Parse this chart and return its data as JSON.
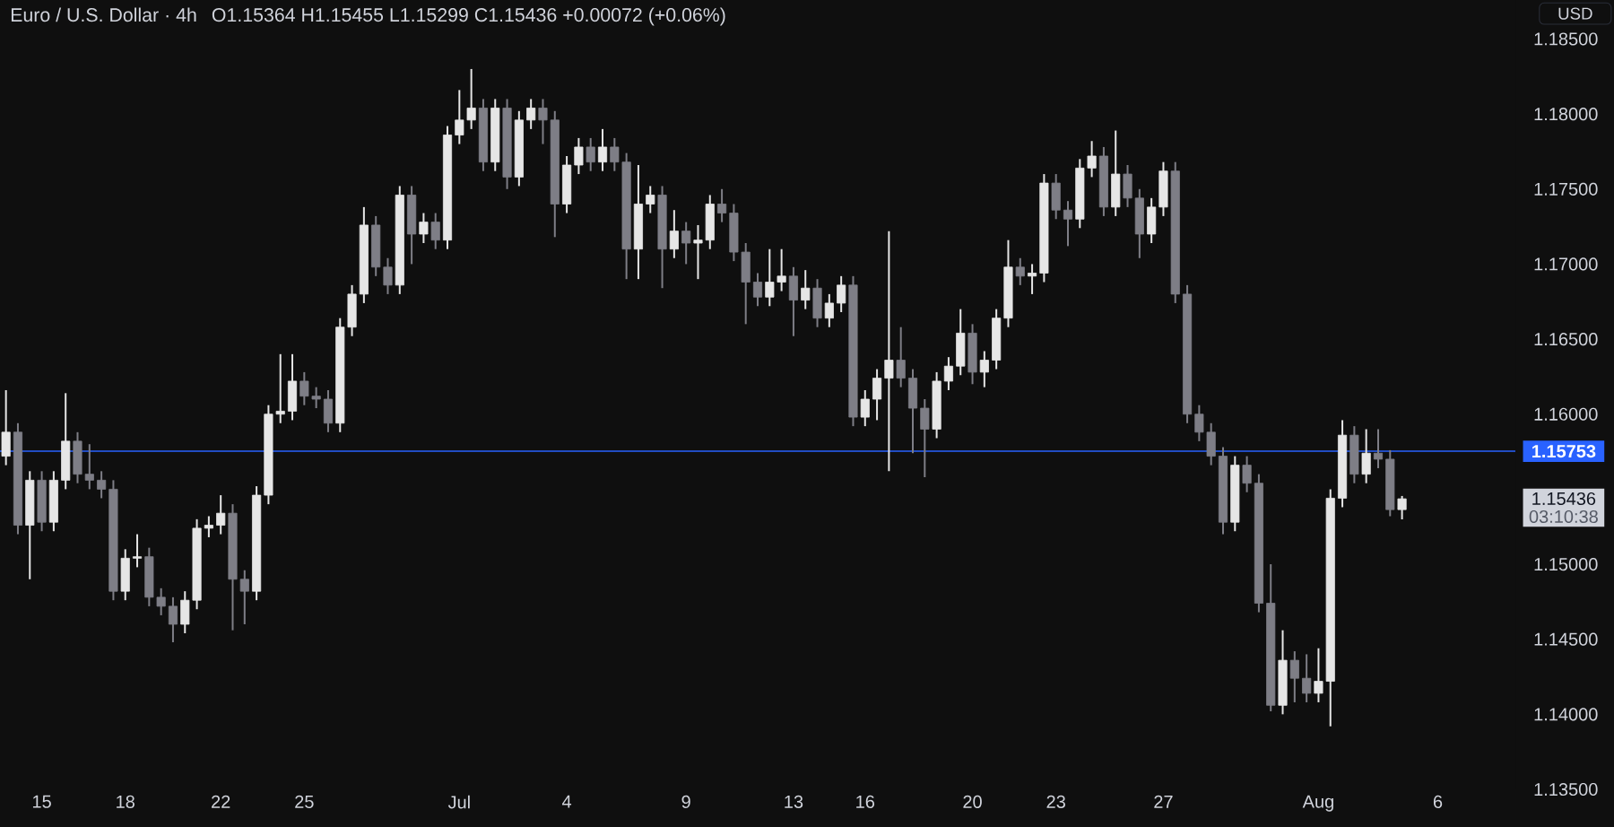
{
  "chart_data": {
    "type": "candlestick",
    "title": "Euro / U.S. Dollar · 4h",
    "subtitle": "O1.15364  H1.15455  L1.15299  C1.15436  +0.00072 (+0.06%)",
    "categories": [
      null,
      null,
      null,
      "15",
      null,
      null,
      null,
      null,
      null,
      null,
      "18",
      null,
      null,
      null,
      null,
      null,
      null,
      null,
      "22",
      null,
      null,
      null,
      null,
      null,
      null,
      "25",
      null,
      null,
      null,
      null,
      null,
      null,
      null,
      null,
      null,
      null,
      null,
      null,
      "Jul",
      null,
      null,
      null,
      null,
      null,
      null,
      null,
      null,
      "4",
      null,
      null,
      null,
      null,
      null,
      null,
      null,
      null,
      null,
      "9",
      null,
      null,
      null,
      null,
      null,
      null,
      null,
      null,
      "13",
      null,
      null,
      null,
      null,
      null,
      "16",
      null,
      null,
      null,
      null,
      null,
      null,
      null,
      null,
      "20",
      null,
      null,
      null,
      null,
      null,
      null,
      "23",
      null,
      null,
      null,
      null,
      null,
      null,
      null,
      null,
      "27",
      null,
      null,
      null,
      null,
      null,
      null,
      null,
      null,
      null,
      null,
      null,
      null,
      "Aug",
      null,
      null,
      null,
      null,
      null,
      null,
      null,
      null,
      null,
      "6",
      null,
      null,
      null,
      null,
      null,
      null
    ],
    "ohlc": [
      [
        1.1572,
        1.1616,
        1.1566,
        1.1588
      ],
      [
        1.1588,
        1.1594,
        1.152,
        1.1526
      ],
      [
        1.1526,
        1.1562,
        1.149,
        1.1556
      ],
      [
        1.1556,
        1.1562,
        1.1522,
        1.1528
      ],
      [
        1.1528,
        1.1562,
        1.1522,
        1.1556
      ],
      [
        1.1556,
        1.1614,
        1.155,
        1.1582
      ],
      [
        1.1582,
        1.1588,
        1.1554,
        1.156
      ],
      [
        1.156,
        1.158,
        1.155,
        1.1556
      ],
      [
        1.1556,
        1.1562,
        1.1544,
        1.155
      ],
      [
        1.155,
        1.1556,
        1.1476,
        1.1482
      ],
      [
        1.1482,
        1.151,
        1.1476,
        1.1504
      ],
      [
        1.1504,
        1.152,
        1.1498,
        1.1505
      ],
      [
        1.1505,
        1.1511,
        1.1472,
        1.1478
      ],
      [
        1.1478,
        1.1484,
        1.1466,
        1.1472
      ],
      [
        1.1472,
        1.1478,
        1.1448,
        1.146
      ],
      [
        1.146,
        1.1482,
        1.1454,
        1.1476
      ],
      [
        1.1476,
        1.153,
        1.147,
        1.1524
      ],
      [
        1.1524,
        1.1532,
        1.1518,
        1.1526
      ],
      [
        1.1526,
        1.1546,
        1.152,
        1.1534
      ],
      [
        1.1534,
        1.154,
        1.1456,
        1.149
      ],
      [
        1.149,
        1.1496,
        1.146,
        1.1482
      ],
      [
        1.1482,
        1.1552,
        1.1476,
        1.1546
      ],
      [
        1.1546,
        1.1606,
        1.154,
        1.16
      ],
      [
        1.16,
        1.164,
        1.1594,
        1.1602
      ],
      [
        1.1602,
        1.164,
        1.1596,
        1.1622
      ],
      [
        1.1622,
        1.1628,
        1.1606,
        1.1612
      ],
      [
        1.1612,
        1.1618,
        1.1604,
        1.161
      ],
      [
        1.161,
        1.1616,
        1.1588,
        1.1594
      ],
      [
        1.1594,
        1.1664,
        1.1588,
        1.1658
      ],
      [
        1.1658,
        1.1686,
        1.1652,
        1.168
      ],
      [
        1.168,
        1.1738,
        1.1674,
        1.1726
      ],
      [
        1.1726,
        1.1732,
        1.1692,
        1.1698
      ],
      [
        1.1698,
        1.1704,
        1.168,
        1.1686
      ],
      [
        1.1686,
        1.1752,
        1.168,
        1.1746
      ],
      [
        1.1746,
        1.1752,
        1.17,
        1.172
      ],
      [
        1.172,
        1.1734,
        1.1714,
        1.1728
      ],
      [
        1.1728,
        1.1734,
        1.171,
        1.1716
      ],
      [
        1.1716,
        1.1792,
        1.171,
        1.1786
      ],
      [
        1.1786,
        1.1816,
        1.178,
        1.1796
      ],
      [
        1.1796,
        1.183,
        1.179,
        1.1804
      ],
      [
        1.1804,
        1.181,
        1.1762,
        1.1768
      ],
      [
        1.1768,
        1.181,
        1.1762,
        1.1804
      ],
      [
        1.1804,
        1.181,
        1.175,
        1.1758
      ],
      [
        1.1758,
        1.1802,
        1.1752,
        1.1796
      ],
      [
        1.1796,
        1.181,
        1.179,
        1.1804
      ],
      [
        1.1804,
        1.181,
        1.178,
        1.1796
      ],
      [
        1.1796,
        1.1802,
        1.1718,
        1.174
      ],
      [
        1.174,
        1.1772,
        1.1734,
        1.1766
      ],
      [
        1.1766,
        1.1784,
        1.176,
        1.1778
      ],
      [
        1.1778,
        1.1784,
        1.1762,
        1.1768
      ],
      [
        1.1768,
        1.179,
        1.1762,
        1.1778
      ],
      [
        1.1778,
        1.1784,
        1.1762,
        1.1768
      ],
      [
        1.1768,
        1.1774,
        1.169,
        1.171
      ],
      [
        1.171,
        1.1766,
        1.169,
        1.174
      ],
      [
        1.174,
        1.1752,
        1.1734,
        1.1746
      ],
      [
        1.1746,
        1.1752,
        1.1684,
        1.171
      ],
      [
        1.171,
        1.1736,
        1.1704,
        1.1722
      ],
      [
        1.1722,
        1.1728,
        1.17,
        1.1714
      ],
      [
        1.1714,
        1.1726,
        1.169,
        1.1716
      ],
      [
        1.1716,
        1.1746,
        1.171,
        1.174
      ],
      [
        1.174,
        1.175,
        1.1728,
        1.1734
      ],
      [
        1.1734,
        1.174,
        1.1702,
        1.1708
      ],
      [
        1.1708,
        1.1714,
        1.166,
        1.1688
      ],
      [
        1.1688,
        1.1694,
        1.1672,
        1.1678
      ],
      [
        1.1678,
        1.171,
        1.1672,
        1.1688
      ],
      [
        1.1688,
        1.171,
        1.1682,
        1.1692
      ],
      [
        1.1692,
        1.1698,
        1.1652,
        1.1676
      ],
      [
        1.1676,
        1.1696,
        1.167,
        1.1684
      ],
      [
        1.1684,
        1.169,
        1.1658,
        1.1664
      ],
      [
        1.1664,
        1.168,
        1.1658,
        1.1674
      ],
      [
        1.1674,
        1.1692,
        1.1668,
        1.1686
      ],
      [
        1.1686,
        1.1692,
        1.1592,
        1.1598
      ],
      [
        1.1598,
        1.1616,
        1.1592,
        1.161
      ],
      [
        1.161,
        1.163,
        1.1596,
        1.1624
      ],
      [
        1.1624,
        1.1722,
        1.1562,
        1.1636
      ],
      [
        1.1636,
        1.1658,
        1.1618,
        1.1624
      ],
      [
        1.1624,
        1.163,
        1.1574,
        1.1604
      ],
      [
        1.1604,
        1.161,
        1.1558,
        1.159
      ],
      [
        1.159,
        1.1628,
        1.1584,
        1.1622
      ],
      [
        1.1622,
        1.1638,
        1.1616,
        1.1632
      ],
      [
        1.1632,
        1.167,
        1.1626,
        1.1654
      ],
      [
        1.1654,
        1.166,
        1.162,
        1.1628
      ],
      [
        1.1628,
        1.1642,
        1.1618,
        1.1636
      ],
      [
        1.1636,
        1.167,
        1.163,
        1.1664
      ],
      [
        1.1664,
        1.1716,
        1.1658,
        1.1698
      ],
      [
        1.1698,
        1.1704,
        1.1686,
        1.1692
      ],
      [
        1.1692,
        1.17,
        1.168,
        1.1694
      ],
      [
        1.1694,
        1.176,
        1.1688,
        1.1754
      ],
      [
        1.1754,
        1.176,
        1.173,
        1.1736
      ],
      [
        1.1736,
        1.1742,
        1.1712,
        1.173
      ],
      [
        1.173,
        1.177,
        1.1724,
        1.1764
      ],
      [
        1.1764,
        1.1782,
        1.1758,
        1.1772
      ],
      [
        1.1772,
        1.1778,
        1.1732,
        1.1738
      ],
      [
        1.1738,
        1.1789,
        1.1732,
        1.176
      ],
      [
        1.176,
        1.1766,
        1.1738,
        1.1744
      ],
      [
        1.1744,
        1.175,
        1.1704,
        1.172
      ],
      [
        1.172,
        1.1744,
        1.1714,
        1.1738
      ],
      [
        1.1738,
        1.1768,
        1.1732,
        1.1762
      ],
      [
        1.1762,
        1.1768,
        1.1674,
        1.168
      ],
      [
        1.168,
        1.1686,
        1.1594,
        1.16
      ],
      [
        1.16,
        1.1606,
        1.1582,
        1.1588
      ],
      [
        1.1588,
        1.1594,
        1.1566,
        1.1572
      ],
      [
        1.1572,
        1.1578,
        1.152,
        1.1528
      ],
      [
        1.1528,
        1.1572,
        1.1522,
        1.1566
      ],
      [
        1.1566,
        1.1572,
        1.1548,
        1.1554
      ],
      [
        1.1554,
        1.156,
        1.1468,
        1.1474
      ],
      [
        1.1474,
        1.15,
        1.1402,
        1.1406
      ],
      [
        1.1406,
        1.1456,
        1.14,
        1.1436
      ],
      [
        1.1436,
        1.1442,
        1.1408,
        1.1424
      ],
      [
        1.1424,
        1.144,
        1.1408,
        1.1414
      ],
      [
        1.1414,
        1.1444,
        1.1408,
        1.1422
      ],
      [
        1.1422,
        1.155,
        1.1392,
        1.1544
      ],
      [
        1.1544,
        1.1596,
        1.1538,
        1.1586
      ],
      [
        1.1586,
        1.1592,
        1.1554,
        1.156
      ],
      [
        1.156,
        1.159,
        1.1554,
        1.1574
      ],
      [
        1.1574,
        1.159,
        1.1564,
        1.157
      ],
      [
        1.157,
        1.1576,
        1.1532,
        1.15364
      ],
      [
        1.15364,
        1.15455,
        1.15299,
        1.15436
      ],
      null,
      null,
      null,
      null,
      null,
      null,
      null,
      null,
      null
    ],
    "colors": [
      "#e6e6e6",
      "#7e7e86",
      "#e6e6e6",
      "#7e7e86",
      "#e6e6e6",
      "#e6e6e6",
      "#7e7e86",
      "#7e7e86",
      "#7e7e86",
      "#7e7e86",
      "#e6e6e6",
      "#e6e6e6",
      "#7e7e86",
      "#7e7e86",
      "#7e7e86",
      "#e6e6e6",
      "#e6e6e6",
      "#e6e6e6",
      "#e6e6e6",
      "#7e7e86",
      "#7e7e86",
      "#e6e6e6",
      "#e6e6e6",
      "#e6e6e6",
      "#e6e6e6",
      "#7e7e86",
      "#7e7e86",
      "#7e7e86",
      "#e6e6e6",
      "#e6e6e6",
      "#e6e6e6",
      "#7e7e86",
      "#7e7e86",
      "#e6e6e6",
      "#7e7e86",
      "#e6e6e6",
      "#7e7e86",
      "#e6e6e6",
      "#e6e6e6",
      "#e6e6e6",
      "#7e7e86",
      "#e6e6e6",
      "#7e7e86",
      "#e6e6e6",
      "#e6e6e6",
      "#7e7e86",
      "#7e7e86",
      "#e6e6e6",
      "#e6e6e6",
      "#7e7e86",
      "#e6e6e6",
      "#7e7e86",
      "#7e7e86",
      "#e6e6e6",
      "#e6e6e6",
      "#7e7e86",
      "#e6e6e6",
      "#7e7e86",
      "#e6e6e6",
      "#e6e6e6",
      "#7e7e86",
      "#7e7e86",
      "#7e7e86",
      "#7e7e86",
      "#e6e6e6",
      "#e6e6e6",
      "#7e7e86",
      "#e6e6e6",
      "#7e7e86",
      "#e6e6e6",
      "#e6e6e6",
      "#7e7e86",
      "#e6e6e6",
      "#e6e6e6",
      "#e6e6e6",
      "#7e7e86",
      "#7e7e86",
      "#7e7e86",
      "#e6e6e6",
      "#e6e6e6",
      "#e6e6e6",
      "#7e7e86",
      "#e6e6e6",
      "#e6e6e6",
      "#e6e6e6",
      "#7e7e86",
      "#e6e6e6",
      "#e6e6e6",
      "#7e7e86",
      "#7e7e86",
      "#e6e6e6",
      "#e6e6e6",
      "#7e7e86",
      "#e6e6e6",
      "#7e7e86",
      "#7e7e86",
      "#e6e6e6",
      "#e6e6e6",
      "#7e7e86",
      "#7e7e86",
      "#7e7e86",
      "#7e7e86",
      "#7e7e86",
      "#e6e6e6",
      "#7e7e86",
      "#7e7e86",
      "#7e7e86",
      "#e6e6e6",
      "#7e7e86",
      "#7e7e86",
      "#e6e6e6",
      "#e6e6e6",
      "#e6e6e6",
      "#7e7e86",
      "#e6e6e6",
      "#7e7e86",
      "#7e7e86",
      "#e6e6e6",
      null,
      null,
      null,
      null,
      null,
      null,
      null,
      null,
      null
    ],
    "ylim": [
      1.135,
      1.1876
    ],
    "yticks": [
      {
        "value": 1.135,
        "label": "1.13500"
      },
      {
        "value": 1.14,
        "label": "1.14000"
      },
      {
        "value": 1.145,
        "label": "1.14500"
      },
      {
        "value": 1.15,
        "label": "1.15000"
      },
      {
        "value": 1.16,
        "label": "1.16000"
      },
      {
        "value": 1.165,
        "label": "1.16500"
      },
      {
        "value": 1.17,
        "label": "1.17000"
      },
      {
        "value": 1.175,
        "label": "1.17500"
      },
      {
        "value": 1.18,
        "label": "1.18000"
      },
      {
        "value": 1.185,
        "label": "1.18500"
      }
    ],
    "ref_lines": [
      {
        "axis": "y",
        "value": 1.15753,
        "label": "1.15753",
        "color": "#2962ff"
      }
    ],
    "annotations": [
      "USD",
      "1.15436",
      "03:10:38"
    ],
    "grid": false
  }
}
